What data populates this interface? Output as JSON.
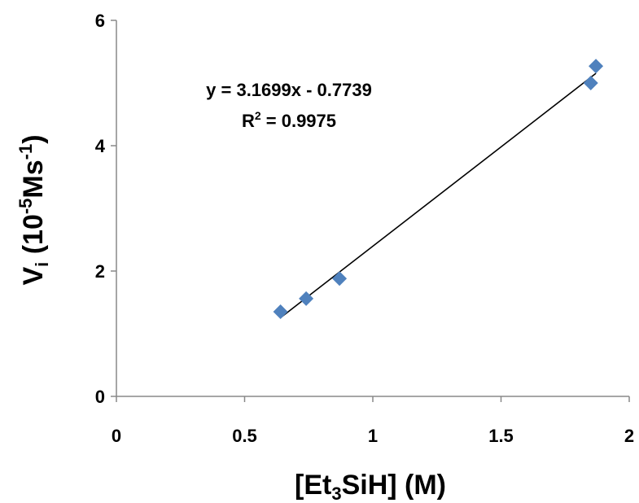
{
  "chart_data": {
    "type": "scatter",
    "title": "",
    "xlabel": {
      "pre": "[Et",
      "sub": "3",
      "post": "SiH] (M)"
    },
    "ylabel": {
      "main": "V",
      "sub": "i",
      "unit_pre": " (10",
      "unit_sup1": "-5",
      "unit_mid": "Ms",
      "unit_sup2": "-1",
      "unit_post": ")"
    },
    "xlim": [
      0,
      2
    ],
    "ylim": [
      0,
      6
    ],
    "xticks": [
      "0",
      "0.5",
      "1",
      "1.5",
      "2"
    ],
    "yticks": [
      "0",
      "2",
      "4",
      "6"
    ],
    "xtick_values": [
      0,
      0.5,
      1,
      1.5,
      2
    ],
    "ytick_values": [
      0,
      2,
      4,
      6
    ],
    "grid": false,
    "legend": "none",
    "series": [
      {
        "marker": "diamond",
        "color": "#4f81bd",
        "x": [
          0.64,
          0.74,
          0.87,
          1.85,
          1.87
        ],
        "y": [
          1.35,
          1.56,
          1.88,
          5.0,
          5.27
        ]
      }
    ],
    "trendline": {
      "slope": 3.1699,
      "intercept": -0.7739,
      "x_range": [
        0.64,
        1.87
      ],
      "color": "#000000",
      "equation_text": "y = 3.1699x - 0.7739",
      "r2_label": "R",
      "r2_sup": "2",
      "r2_value": " = 0.9975"
    }
  }
}
